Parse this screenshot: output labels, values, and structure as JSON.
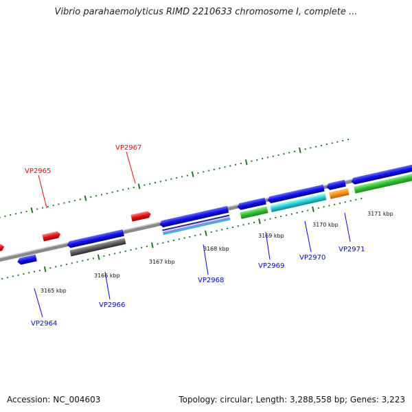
{
  "header": {
    "title": "Vibrio parahaemolyticus RIMD 2210633 chromosome I, complete ..."
  },
  "footer": {
    "accession": "Accession: NC_004603",
    "summary": "Topology: circular; Length: 3,288,558 bp; Genes: 3,223"
  },
  "axis": {
    "ticks": [
      "3165 kbp",
      "3166 kbp",
      "3167 kbp",
      "3168 kbp",
      "3169 kbp",
      "3170 kbp",
      "3171 kbp"
    ]
  },
  "colors": {
    "forward_label": "#ff0000",
    "reverse_label": "#0000ff",
    "tick_mark": "#1a7a1a",
    "backbone": "#808080"
  },
  "genes": {
    "top": [
      "VP2965",
      "VP2967"
    ],
    "bottom": [
      "VP2964",
      "VP2966",
      "VP2968",
      "VP2969",
      "VP2970",
      "VP2971"
    ]
  }
}
